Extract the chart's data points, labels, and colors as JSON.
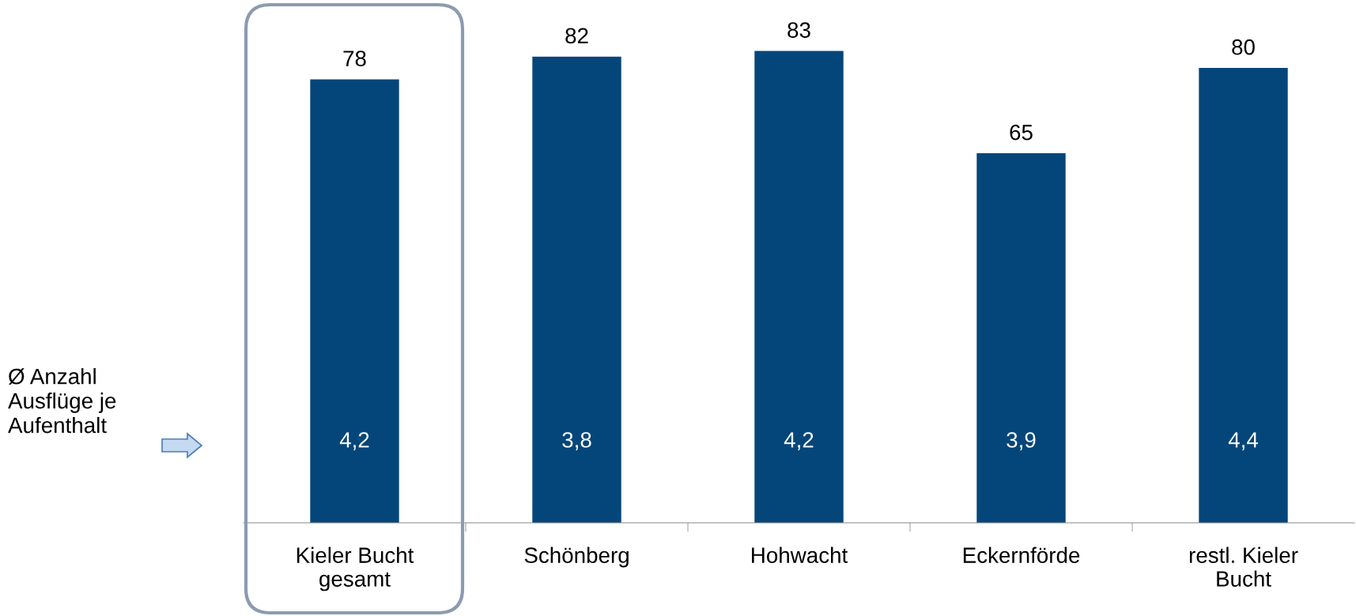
{
  "chart_data": {
    "type": "bar",
    "categories": [
      "Kieler Bucht gesamt",
      "Schönberg",
      "Hohwacht",
      "Eckernförde",
      "restl. Kieler Bucht"
    ],
    "values": [
      78,
      82,
      83,
      65,
      80
    ],
    "color": "#05467a",
    "data_labels": true,
    "annotations": [
      "Ø Anzahl\nAusflüge je\nAufenthalt",
      "4,2",
      "3,8",
      "4,2",
      "3,9",
      "4,4"
    ],
    "grid": false,
    "legend": false
  }
}
